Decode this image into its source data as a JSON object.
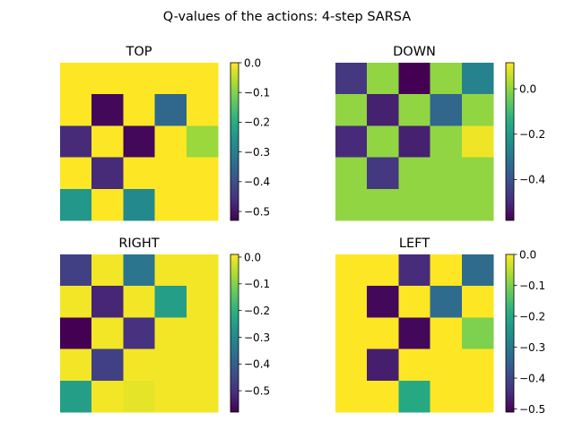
{
  "figure": {
    "title": "Q-values of the actions: 4-step SARSA"
  },
  "colormap": [
    "#440154",
    "#472f7d",
    "#3b518b",
    "#2c718e",
    "#21908d",
    "#27ad81",
    "#5cc863",
    "#aadc32",
    "#fde725"
  ],
  "chart_data": [
    {
      "type": "heatmap",
      "title": "TOP",
      "rows": 5,
      "cols": 5,
      "values": [
        [
          0.0,
          0.0,
          0.0,
          0.0,
          0.0
        ],
        [
          0.0,
          -0.52,
          0.0,
          -0.35,
          0.0
        ],
        [
          -0.47,
          0.0,
          -0.52,
          0.0,
          -0.08
        ],
        [
          0.0,
          -0.47,
          0.0,
          0.0,
          0.0
        ],
        [
          -0.25,
          0.0,
          -0.28,
          0.0,
          0.0
        ]
      ],
      "vmin": -0.53,
      "vmax": 0.0,
      "colorbar_ticks": [
        0.0,
        -0.1,
        -0.2,
        -0.3,
        -0.4,
        -0.5
      ],
      "colorbar_tick_labels": [
        "0.0",
        "−0.1",
        "−0.2",
        "−0.3",
        "−0.4",
        "−0.5"
      ]
    },
    {
      "type": "heatmap",
      "title": "DOWN",
      "rows": 5,
      "cols": 5,
      "values": [
        [
          -0.47,
          0.0,
          -0.58,
          0.0,
          -0.27
        ],
        [
          0.0,
          -0.52,
          0.0,
          -0.35,
          0.0
        ],
        [
          -0.5,
          0.0,
          -0.52,
          0.0,
          0.1
        ],
        [
          0.0,
          -0.47,
          0.0,
          0.0,
          0.0
        ],
        [
          0.0,
          0.0,
          0.0,
          0.0,
          0.0
        ]
      ],
      "vmin": -0.58,
      "vmax": 0.115,
      "colorbar_ticks": [
        0.0,
        -0.2,
        -0.4
      ],
      "colorbar_tick_labels": [
        "0.0",
        "−0.2",
        "−0.4"
      ]
    },
    {
      "type": "heatmap",
      "title": "RIGHT",
      "rows": 5,
      "cols": 5,
      "values": [
        [
          -0.47,
          0.0,
          -0.35,
          0.0,
          0.0
        ],
        [
          0.0,
          -0.52,
          0.0,
          -0.25,
          0.0
        ],
        [
          -0.58,
          0.0,
          -0.5,
          0.0,
          0.0
        ],
        [
          0.0,
          -0.47,
          0.0,
          0.0,
          0.0
        ],
        [
          -0.25,
          0.0,
          -0.01,
          0.0,
          0.0
        ]
      ],
      "vmin": -0.58,
      "vmax": 0.01,
      "colorbar_ticks": [
        0.0,
        -0.1,
        -0.2,
        -0.3,
        -0.4,
        -0.5
      ],
      "colorbar_tick_labels": [
        "0.0",
        "−0.1",
        "−0.2",
        "−0.3",
        "−0.4",
        "−0.5"
      ]
    },
    {
      "type": "heatmap",
      "title": "LEFT",
      "rows": 5,
      "cols": 5,
      "values": [
        [
          0.0,
          0.0,
          -0.45,
          0.0,
          -0.33
        ],
        [
          0.0,
          -0.5,
          0.0,
          -0.33,
          0.0
        ],
        [
          0.0,
          0.0,
          -0.5,
          0.0,
          -0.1
        ],
        [
          0.0,
          -0.47,
          0.0,
          0.0,
          0.0
        ],
        [
          0.0,
          0.0,
          -0.2,
          0.0,
          0.0
        ]
      ],
      "vmin": -0.51,
      "vmax": 0.0,
      "colorbar_ticks": [
        0.0,
        -0.1,
        -0.2,
        -0.3,
        -0.4,
        -0.5
      ],
      "colorbar_tick_labels": [
        "0.0",
        "−0.1",
        "−0.2",
        "−0.3",
        "−0.4",
        "−0.5"
      ]
    }
  ]
}
